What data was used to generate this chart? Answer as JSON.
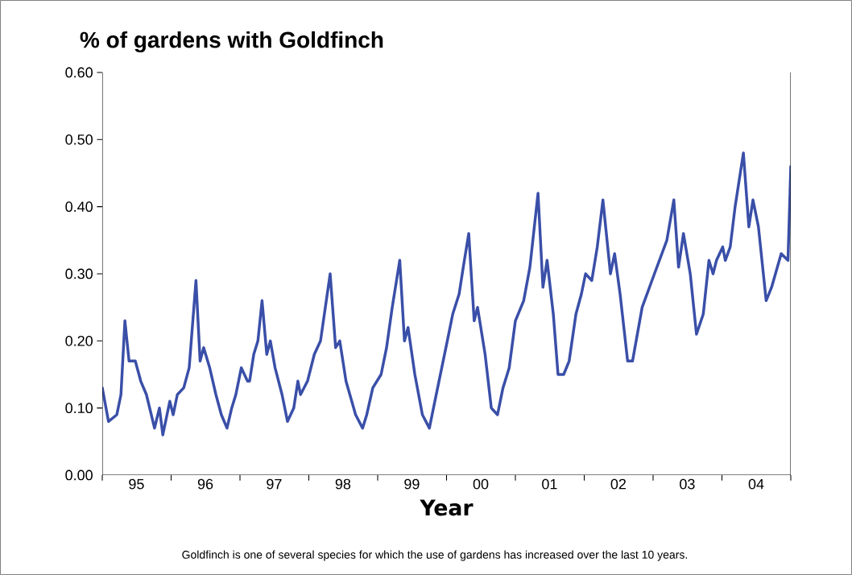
{
  "chart_data": {
    "type": "line",
    "title": "% of gardens with Goldfinch",
    "xlabel": "Year",
    "annotations": [
      "Goldfinch is one of several species for which the use of gardens has increased over the last 10 years."
    ],
    "color": "#3a4fa8",
    "x": [
      "1995-01-01",
      "1995-02-03",
      "1995-03-19",
      "1995-04-10",
      "1995-05-01",
      "1995-05-23",
      "1995-06-25",
      "1995-07-24",
      "1995-08-23",
      "1995-10-05",
      "1995-10-31",
      "1995-11-18",
      "1995-12-25",
      "1996-01-12",
      "1996-02-03",
      "1996-03-08",
      "1996-04-06",
      "1996-05-12",
      "1996-06-03",
      "1996-06-22",
      "1996-07-24",
      "1996-08-26",
      "1996-09-24",
      "1996-10-24",
      "1996-11-18",
      "1996-12-10",
      "1997-01-08",
      "1997-02-10",
      "1997-02-21",
      "1997-03-15",
      "1997-04-06",
      "1997-04-28",
      "1997-05-23",
      "1997-06-11",
      "1997-07-06",
      "1997-08-12",
      "1997-09-10",
      "1997-10-13",
      "1997-11-04",
      "1997-11-18",
      "1997-12-25",
      "1998-01-30",
      "1998-03-04",
      "1998-04-24",
      "1998-05-23",
      "1998-06-14",
      "1998-07-17",
      "1998-09-06",
      "1998-10-13",
      "1998-11-04",
      "1998-12-06",
      "1999-01-19",
      "1999-02-17",
      "1999-03-19",
      "1999-04-28",
      "1999-05-23",
      "1999-06-11",
      "1999-07-17",
      "1999-08-26",
      "1999-10-02",
      "1999-10-31",
      "1999-11-22",
      "2000-01-05",
      "2000-02-03",
      "2000-03-08",
      "2000-03-30",
      "2000-04-28",
      "2000-05-27",
      "2000-06-14",
      "2000-07-24",
      "2000-08-26",
      "2000-09-28",
      "2000-10-27",
      "2000-11-29",
      "2001-01-01",
      "2001-02-14",
      "2001-03-19",
      "2001-05-01",
      "2001-05-27",
      "2001-06-18",
      "2001-07-21",
      "2001-08-15",
      "2001-09-14",
      "2001-10-13",
      "2001-11-18",
      "2001-12-17",
      "2002-01-08",
      "2002-02-10",
      "2002-03-11",
      "2002-04-10",
      "2002-05-20",
      "2002-06-11",
      "2002-07-10",
      "2002-08-19",
      "2002-09-14",
      "2002-11-04",
      "2003-01-08",
      "2003-03-15",
      "2003-04-21",
      "2003-05-16",
      "2003-06-11",
      "2003-07-17",
      "2003-08-19",
      "2003-09-24",
      "2003-10-24",
      "2003-11-15",
      "2003-12-03",
      "2004-01-05",
      "2004-01-19",
      "2004-02-14",
      "2004-03-11",
      "2004-04-24",
      "2004-05-23",
      "2004-06-14",
      "2004-07-13",
      "2004-08-23",
      "2004-09-21",
      "2004-11-11",
      "2004-12-17",
      "2005-01-01"
    ],
    "values": [
      0.13,
      0.08,
      0.09,
      0.12,
      0.23,
      0.17,
      0.17,
      0.14,
      0.12,
      0.07,
      0.1,
      0.06,
      0.11,
      0.09,
      0.12,
      0.13,
      0.16,
      0.29,
      0.17,
      0.19,
      0.16,
      0.12,
      0.09,
      0.07,
      0.1,
      0.12,
      0.16,
      0.14,
      0.14,
      0.18,
      0.2,
      0.26,
      0.18,
      0.2,
      0.16,
      0.12,
      0.08,
      0.1,
      0.14,
      0.12,
      0.14,
      0.18,
      0.2,
      0.3,
      0.19,
      0.2,
      0.14,
      0.09,
      0.07,
      0.09,
      0.13,
      0.15,
      0.19,
      0.25,
      0.32,
      0.2,
      0.22,
      0.15,
      0.09,
      0.07,
      0.11,
      0.14,
      0.2,
      0.24,
      0.27,
      0.31,
      0.36,
      0.23,
      0.25,
      0.18,
      0.1,
      0.09,
      0.13,
      0.16,
      0.23,
      0.26,
      0.31,
      0.42,
      0.28,
      0.32,
      0.24,
      0.15,
      0.15,
      0.17,
      0.24,
      0.27,
      0.3,
      0.29,
      0.34,
      0.41,
      0.3,
      0.33,
      0.27,
      0.17,
      0.17,
      0.25,
      0.3,
      0.35,
      0.41,
      0.31,
      0.36,
      0.3,
      0.21,
      0.24,
      0.32,
      0.3,
      0.32,
      0.34,
      0.32,
      0.34,
      0.4,
      0.48,
      0.37,
      0.41,
      0.37,
      0.26,
      0.28,
      0.33,
      0.32,
      0.46
    ],
    "xlim": [
      "1995-01-01",
      "2005-01-01"
    ],
    "xticks": [
      {
        "value": "1995-01-01",
        "label": null
      },
      {
        "value": "1996-01-01",
        "label": null
      },
      {
        "value": "1997-01-01",
        "label": null
      },
      {
        "value": "1998-01-01",
        "label": null
      },
      {
        "value": "1999-01-01",
        "label": null
      },
      {
        "value": "2000-01-01",
        "label": null
      },
      {
        "value": "2001-01-01",
        "label": null
      },
      {
        "value": "2002-01-01",
        "label": null
      },
      {
        "value": "2003-01-01",
        "label": null
      },
      {
        "value": "2004-01-01",
        "label": null
      },
      {
        "value": "2005-01-01",
        "label": null
      },
      {
        "value": "1995-07-01",
        "label": "95"
      },
      {
        "value": "1996-07-01",
        "label": "96"
      },
      {
        "value": "1997-07-01",
        "label": "97"
      },
      {
        "value": "1998-07-01",
        "label": "98"
      },
      {
        "value": "1999-07-01",
        "label": "99"
      },
      {
        "value": "2000-07-01",
        "label": "00"
      },
      {
        "value": "2001-07-01",
        "label": "01"
      },
      {
        "value": "2002-07-01",
        "label": "02"
      },
      {
        "value": "2003-07-01",
        "label": "03"
      },
      {
        "value": "2004-07-01",
        "label": "04"
      }
    ],
    "ylim": [
      0,
      0.6
    ],
    "yticks": [
      {
        "value": 0,
        "label": "0.00"
      },
      {
        "value": 0.1,
        "label": "0.10"
      },
      {
        "value": 0.2,
        "label": "0.20"
      },
      {
        "value": 0.3,
        "label": "0.30"
      },
      {
        "value": 0.4,
        "label": "0.40"
      },
      {
        "value": 0.5,
        "label": "0.50"
      },
      {
        "value": 0.6,
        "label": "0.60"
      }
    ]
  }
}
